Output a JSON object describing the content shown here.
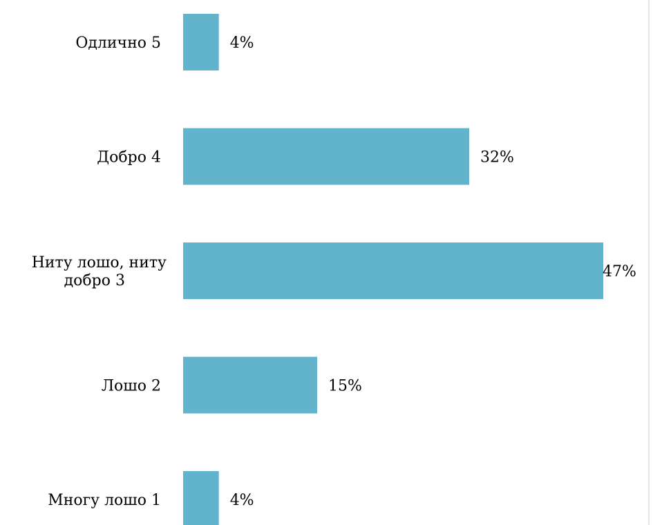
{
  "chart_data": {
    "type": "bar",
    "orientation": "horizontal",
    "categories": [
      [
        "Одлично 5"
      ],
      [
        "Добро 4"
      ],
      [
        "Ниту лошо, ниту",
        "добро 3"
      ],
      [
        "Лошо 2"
      ],
      [
        "Многу лошо 1"
      ]
    ],
    "values": [
      4,
      32,
      47,
      15,
      4
    ],
    "value_labels": [
      "4%",
      "32%",
      "47%",
      "15%",
      "4%"
    ],
    "unit": "%",
    "xlim": [
      0,
      47
    ],
    "grid": false,
    "legend": "none",
    "bar_color": "#62b4cc"
  }
}
